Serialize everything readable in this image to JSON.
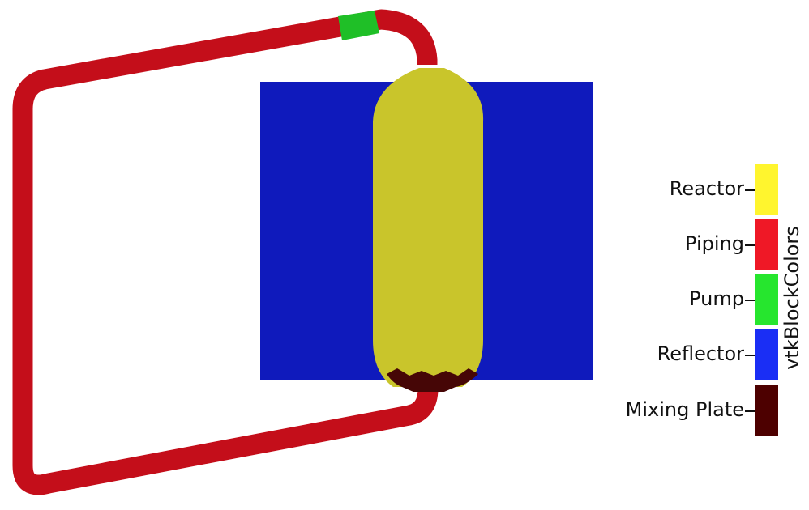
{
  "legend": {
    "title": "vtkBlockColors",
    "items": [
      {
        "label": "Reactor",
        "color": "#fff52e"
      },
      {
        "label": "Piping",
        "color": "#ef1826"
      },
      {
        "label": "Pump",
        "color": "#26e62e"
      },
      {
        "label": "Reflector",
        "color": "#1a2ef5"
      },
      {
        "label": "Mixing Plate",
        "color": "#4d0000"
      }
    ]
  },
  "scene_colors": {
    "reactor": "#c9c52b",
    "piping": "#c40e1a",
    "pump": "#1fbf27",
    "reflector": "#0f1abc",
    "mixing_plate": "#460606"
  }
}
